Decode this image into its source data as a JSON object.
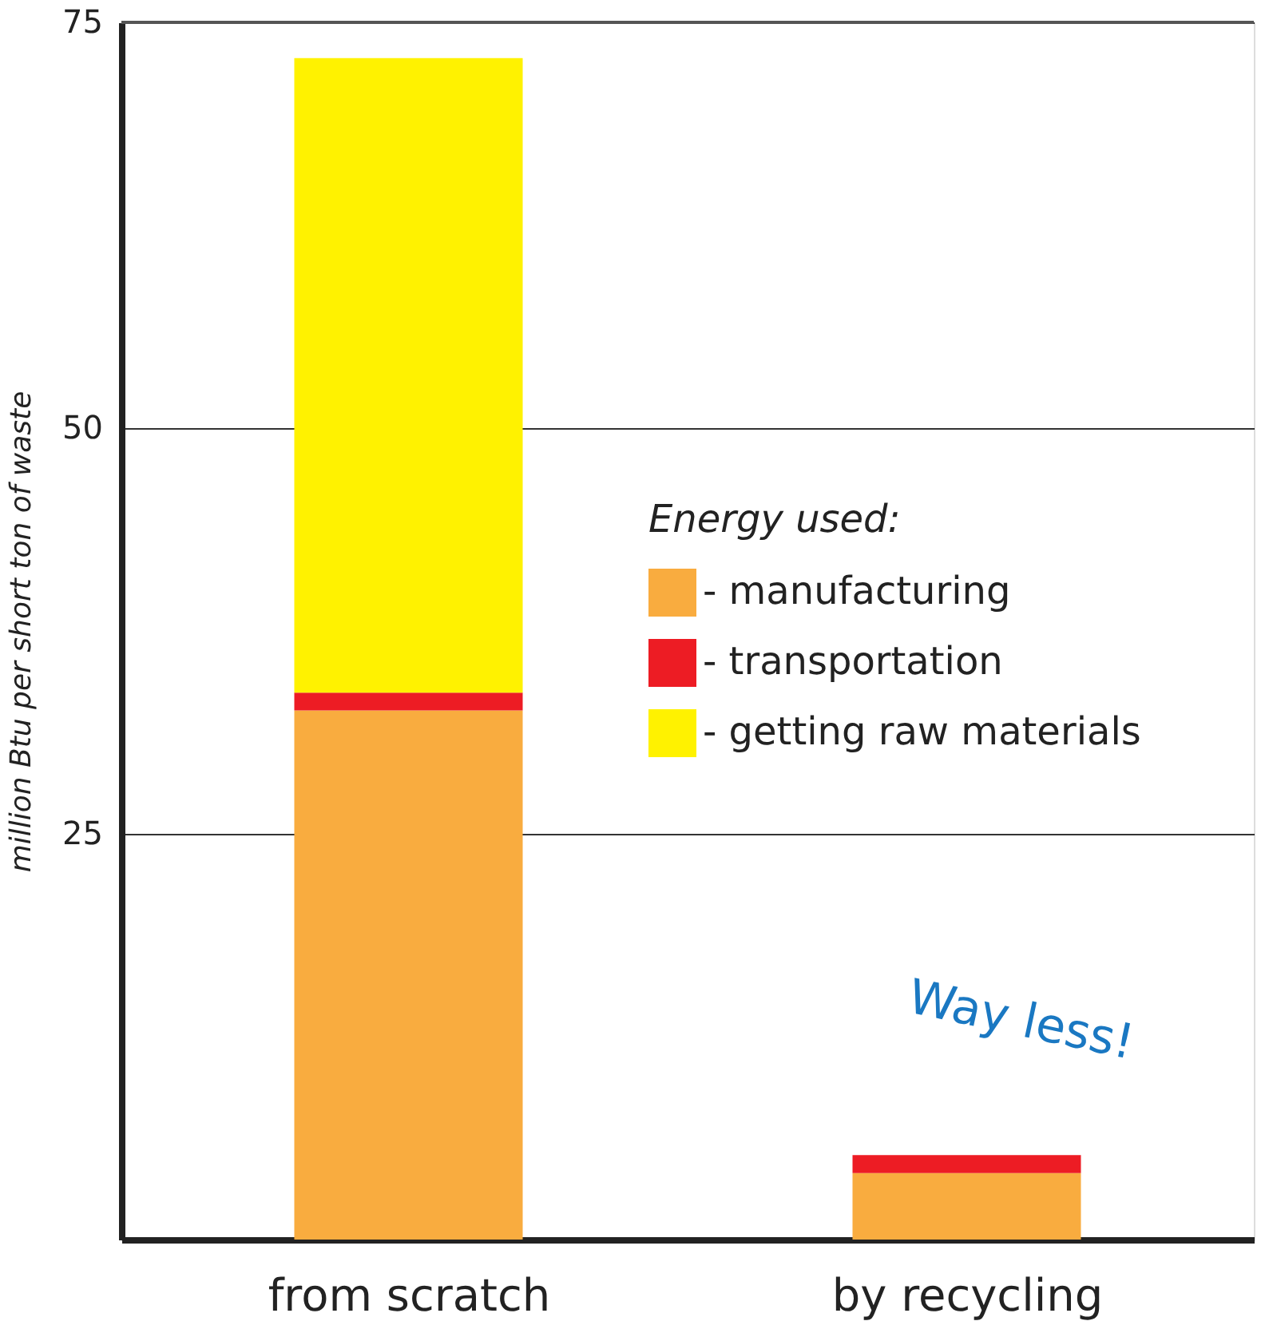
{
  "chart_data": {
    "type": "bar",
    "stacked": true,
    "ylabel": "million Btu per short ton of waste",
    "legend_title": "Energy used:",
    "legend": "right",
    "categories": [
      "from scratch",
      "by recycling"
    ],
    "series": [
      {
        "name": "- manufacturing",
        "color": "#f9ac3f",
        "values": [
          32.6,
          4.1
        ]
      },
      {
        "name": "- transportation",
        "color": "#ed1c24",
        "values": [
          1.1,
          1.1
        ]
      },
      {
        "name": "- getting raw materials",
        "color": "#fff200",
        "values": [
          39.1,
          0
        ]
      }
    ],
    "ylim": [
      0,
      75
    ],
    "yticks": [
      25,
      50,
      75
    ],
    "grid": "y",
    "annotations": [
      "Way less!"
    ]
  }
}
